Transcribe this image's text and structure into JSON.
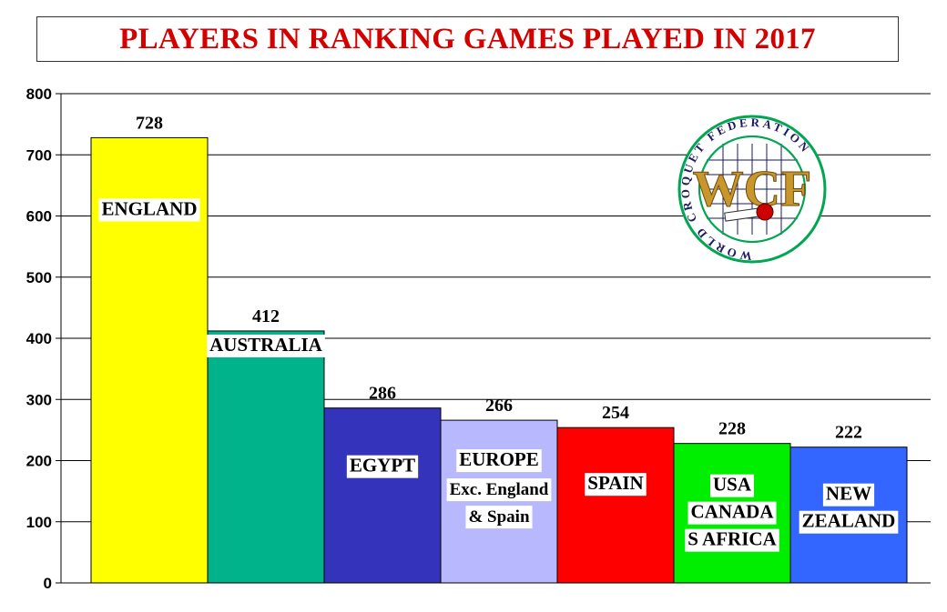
{
  "chart_data": {
    "type": "bar",
    "title": "PLAYERS IN RANKING GAMES PLAYED IN 2017",
    "xlabel": "",
    "ylabel": "",
    "ylim": [
      0,
      800
    ],
    "yticks": [
      0,
      100,
      200,
      300,
      400,
      500,
      600,
      700,
      800
    ],
    "grid": true,
    "categories": [
      "ENGLAND",
      "AUSTRALIA",
      "EGYPT",
      "EUROPE",
      "SPAIN",
      "USA",
      "NEW"
    ],
    "category_labels": [
      [
        "ENGLAND"
      ],
      [
        "AUSTRALIA"
      ],
      [
        "EGYPT"
      ],
      [
        "EUROPE",
        "Exc. England",
        "& Spain"
      ],
      [
        "SPAIN"
      ],
      [
        "USA",
        "CANADA",
        "S AFRICA"
      ],
      [
        "NEW",
        "ZEALAND"
      ]
    ],
    "values": [
      728,
      412,
      286,
      266,
      254,
      228,
      222
    ],
    "colors": [
      "#ffff00",
      "#00b38a",
      "#3333bb",
      "#b8b8ff",
      "#ff0000",
      "#00ee00",
      "#3366ff"
    ]
  },
  "logo": {
    "letters": "WCF",
    "ring_text": "WORLD CROQUET FEDERATION",
    "ring_color": "#00a651",
    "letter_color": "#c8962a",
    "ball_color": "#cc0000"
  }
}
